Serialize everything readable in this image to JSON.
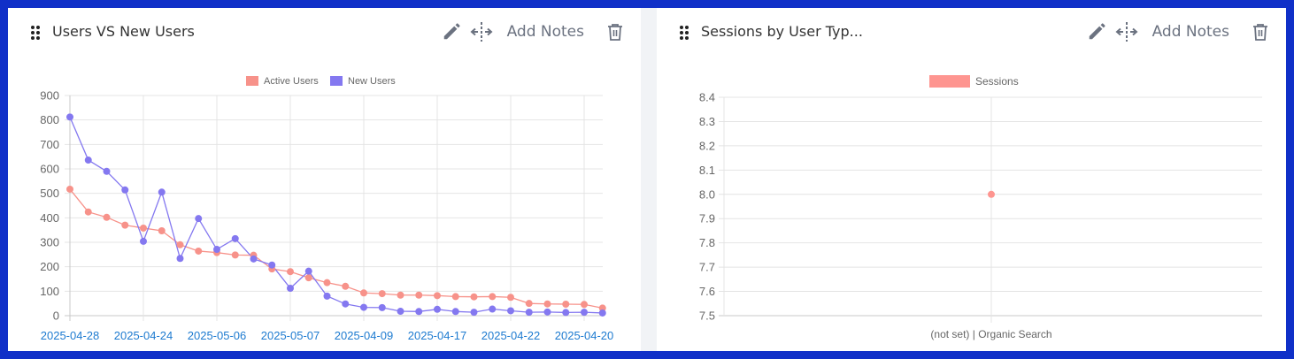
{
  "panels": [
    {
      "title": "Users VS New Users",
      "actions": {
        "edit_icon": "pencil-icon",
        "move_icon": "move-horizontal-icon",
        "notes_label": "Add Notes",
        "delete_icon": "trash-icon"
      }
    },
    {
      "title": "Sessions by User Typ...",
      "actions": {
        "edit_icon": "pencil-icon",
        "move_icon": "move-horizontal-icon",
        "notes_label": "Add Notes",
        "delete_icon": "trash-icon"
      }
    }
  ],
  "colors": {
    "active_users": "#f7928a",
    "new_users": "#8478f0",
    "sessions": "#fe9590",
    "x_tick": "#1e7bd0",
    "frame": "#1030c8"
  },
  "chart_data": [
    {
      "type": "line",
      "title": "Users VS New Users",
      "legend": [
        "Active Users",
        "New Users"
      ],
      "legend_position": "top",
      "ylim": [
        0,
        900
      ],
      "yticks": [
        0,
        100,
        200,
        300,
        400,
        500,
        600,
        700,
        800,
        900
      ],
      "x_tick_labels": [
        "2025-04-28",
        "2025-04-24",
        "2025-05-06",
        "2025-05-07",
        "2025-04-09",
        "2025-04-17",
        "2025-04-22",
        "2025-04-20"
      ],
      "x_tick_every": 4,
      "grid": true,
      "series": [
        {
          "name": "Active Users",
          "values": [
            517,
            424,
            402,
            370,
            358,
            347,
            290,
            264,
            258,
            248,
            247,
            191,
            180,
            155,
            135,
            120,
            93,
            90,
            84,
            84,
            82,
            78,
            77,
            78,
            75,
            50,
            48,
            47,
            46,
            31
          ]
        },
        {
          "name": "New Users",
          "values": [
            812,
            636,
            590,
            514,
            304,
            505,
            234,
            397,
            271,
            315,
            232,
            207,
            112,
            182,
            80,
            48,
            34,
            33,
            18,
            17,
            26,
            17,
            14,
            27,
            20,
            14,
            15,
            13,
            14,
            11
          ]
        }
      ]
    },
    {
      "type": "line",
      "title": "Sessions by User Typ...",
      "legend": [
        "Sessions"
      ],
      "legend_position": "top",
      "categories": [
        "(not set) | Organic Search"
      ],
      "ylim": [
        7.5,
        8.4
      ],
      "yticks": [
        "7.5",
        "7.6",
        "7.7",
        "7.8",
        "7.9",
        "8.0",
        "8.1",
        "8.2",
        "8.3",
        "8.4"
      ],
      "grid": true,
      "series": [
        {
          "name": "Sessions",
          "values": [
            8.0
          ]
        }
      ]
    }
  ]
}
